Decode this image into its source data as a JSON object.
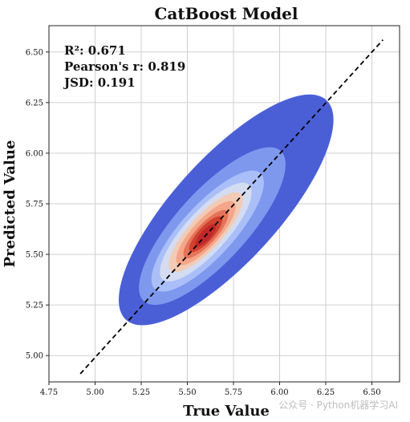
{
  "chart_data": {
    "type": "scatter",
    "title": "CatBoost Model",
    "xlabel": "True Value",
    "ylabel": "Predicted Value",
    "xlim": [
      4.75,
      6.65
    ],
    "ylim": [
      4.87,
      6.63
    ],
    "x_ticks": [
      "4.75",
      "5.00",
      "5.25",
      "5.50",
      "5.75",
      "6.00",
      "6.25",
      "6.50"
    ],
    "y_ticks": [
      "5.00",
      "5.25",
      "5.50",
      "5.75",
      "6.00",
      "6.25",
      "6.50"
    ],
    "grid": true,
    "metrics": [
      "R²: 0.671",
      "Pearson's r: 0.819",
      "JSD: 0.191"
    ],
    "reference_line": {
      "style": "dashed",
      "color": "#000000",
      "from": [
        4.92,
        4.91
      ],
      "to": [
        6.56,
        6.56
      ]
    },
    "density": {
      "kind": "kde",
      "center": [
        5.58,
        5.59
      ],
      "colors": [
        "#4a5fd6",
        "#7e98ee",
        "#aabff8",
        "#d4dcf2",
        "#f2cbb6",
        "#f5a688",
        "#e4735a",
        "#d0412f",
        "#c0282a"
      ],
      "levels": [
        {
          "x": [
            5.1,
            6.32
          ],
          "y": [
            5.24,
            6.2
          ]
        },
        {
          "x": [
            5.22,
            6.05
          ],
          "y": [
            5.31,
            5.97
          ]
        },
        {
          "x": [
            5.3,
            5.92
          ],
          "y": [
            5.35,
            5.88
          ]
        },
        {
          "x": [
            5.35,
            5.85
          ],
          "y": [
            5.39,
            5.83
          ]
        },
        {
          "x": [
            5.4,
            5.8
          ],
          "y": [
            5.43,
            5.79
          ]
        },
        {
          "x": [
            5.44,
            5.76
          ],
          "y": [
            5.46,
            5.75
          ]
        },
        {
          "x": [
            5.48,
            5.72
          ],
          "y": [
            5.49,
            5.71
          ]
        },
        {
          "x": [
            5.51,
            5.69
          ],
          "y": [
            5.52,
            5.68
          ]
        },
        {
          "x": [
            5.54,
            5.66
          ],
          "y": [
            5.55,
            5.64
          ]
        }
      ]
    }
  },
  "watermark": "公众号 · Python机器学习AI"
}
